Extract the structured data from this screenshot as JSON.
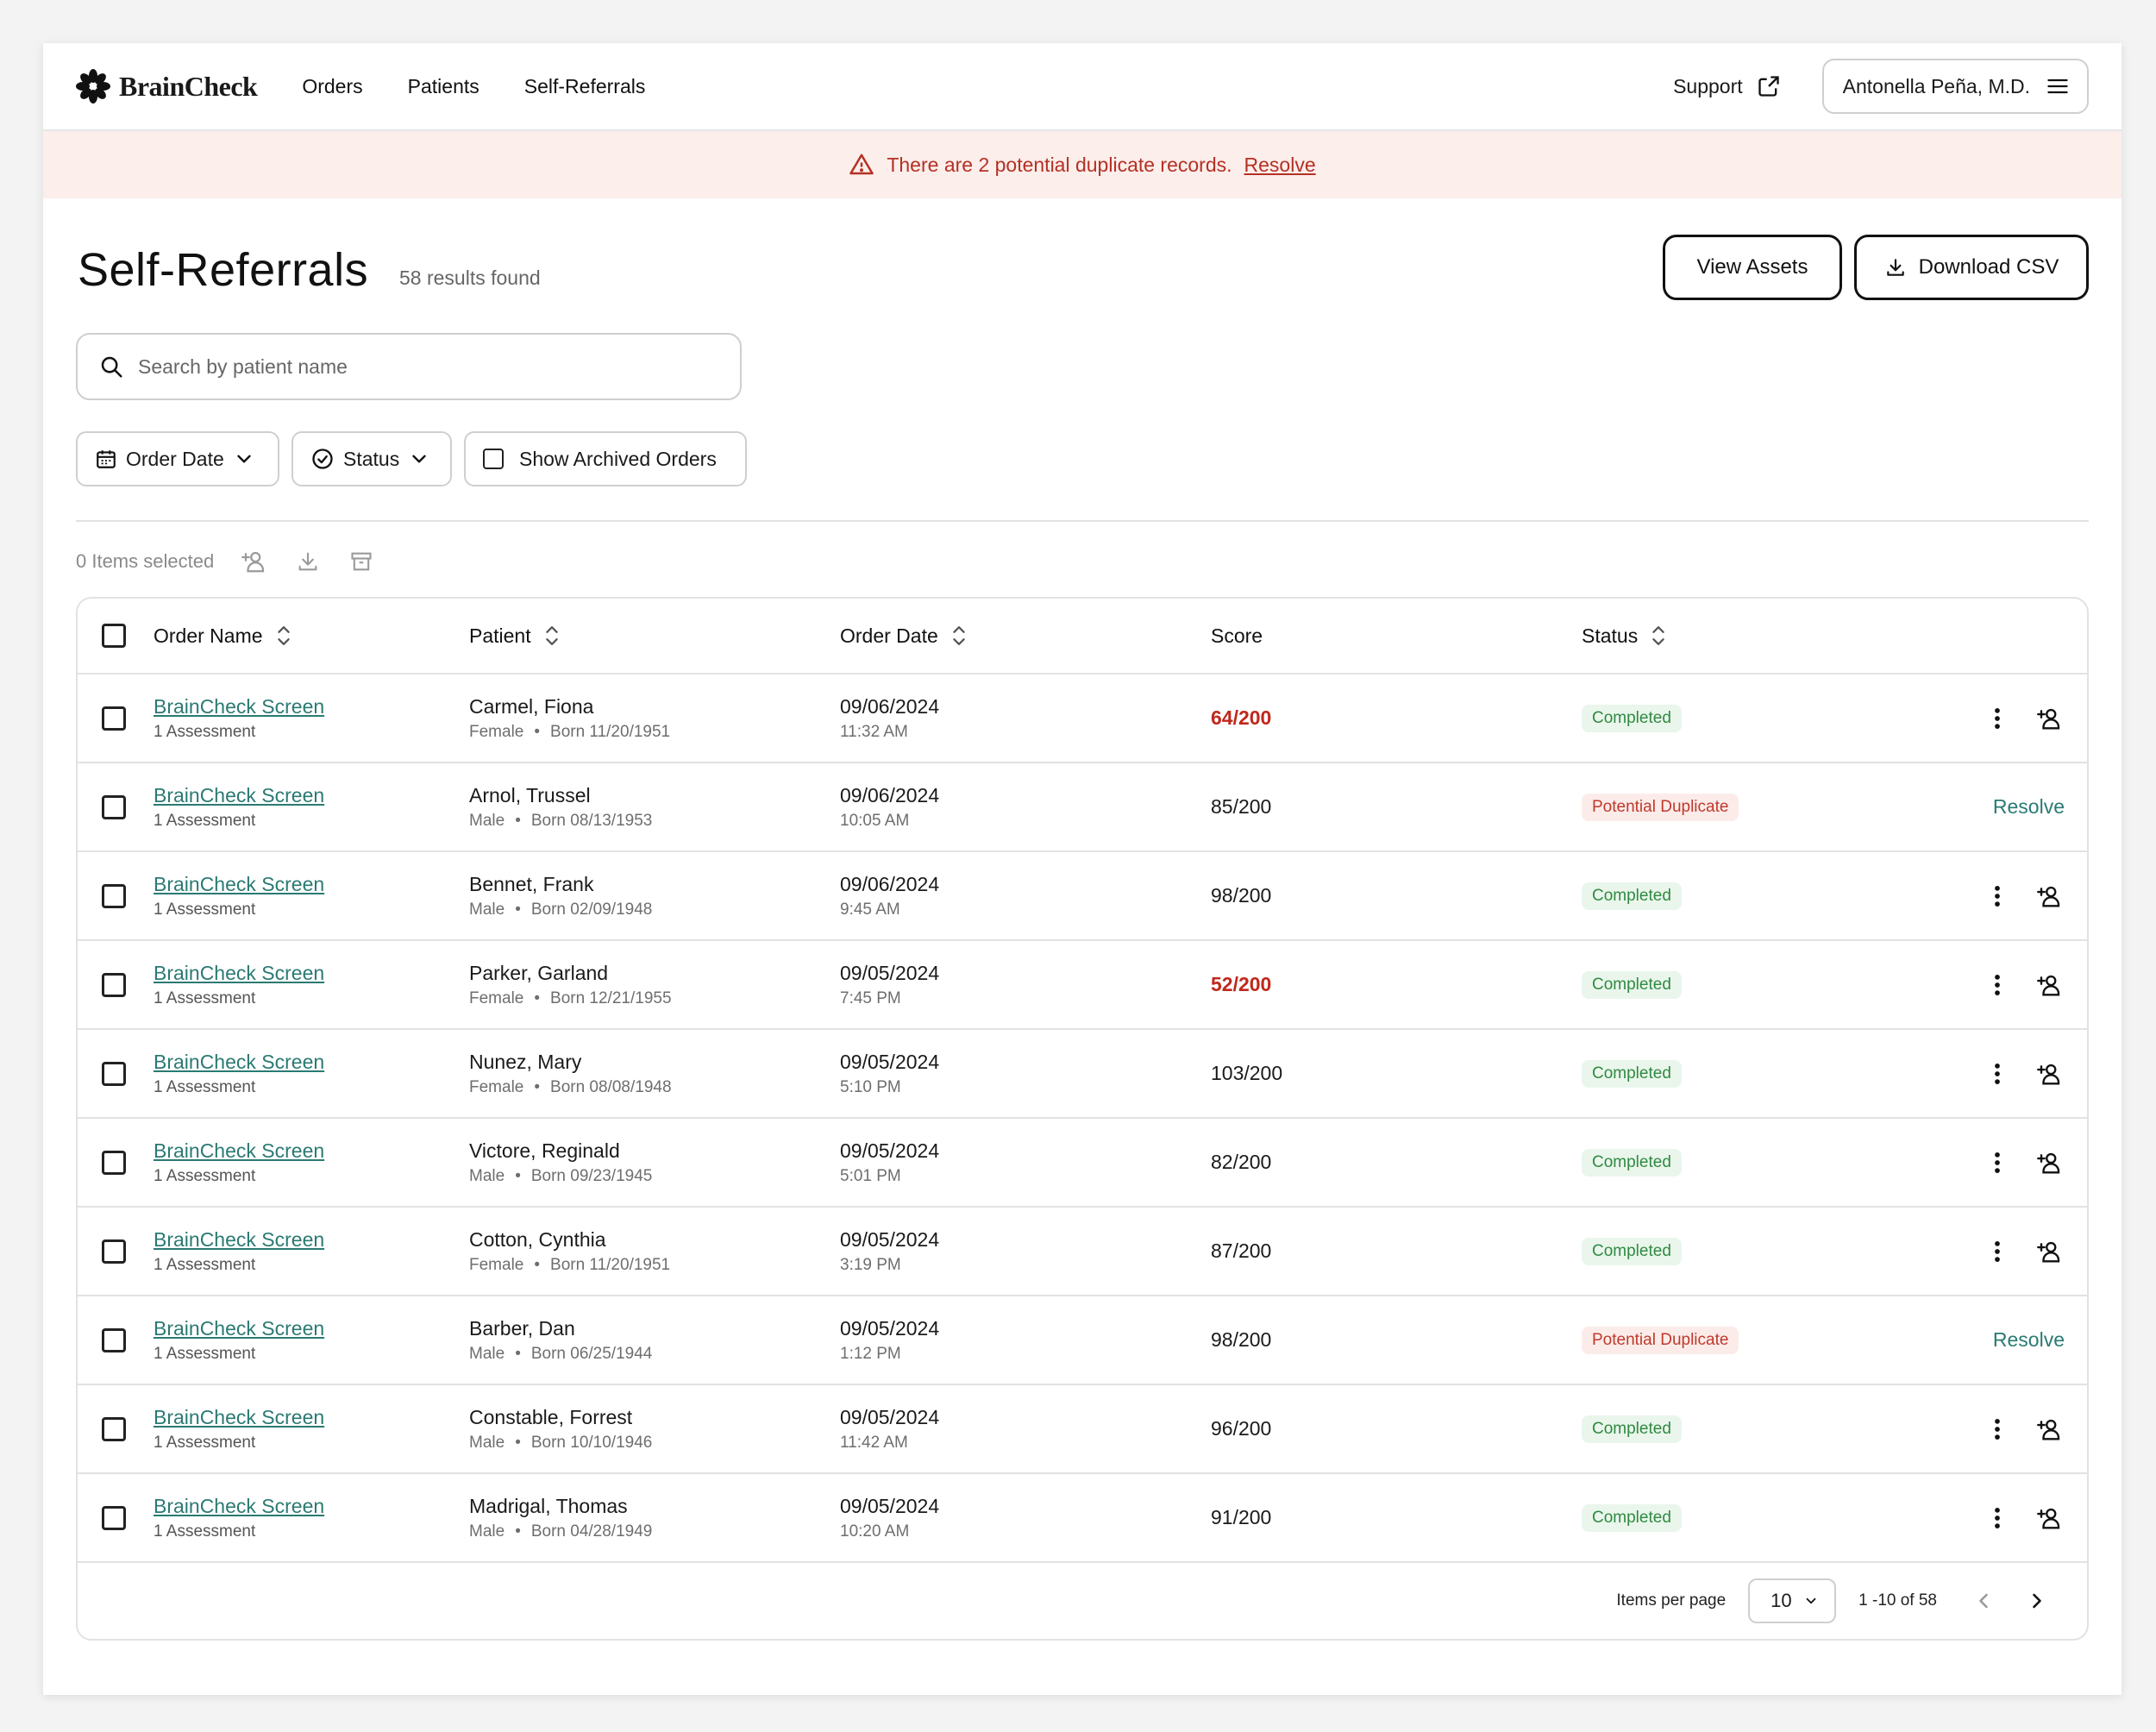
{
  "brand": {
    "name": "BrainCheck"
  },
  "nav": {
    "items": [
      {
        "label": "Orders"
      },
      {
        "label": "Patients"
      },
      {
        "label": "Self-Referrals"
      }
    ],
    "support_label": "Support",
    "user_label": "Antonella Peña, M.D."
  },
  "alert": {
    "message": "There are 2 potential duplicate records.",
    "action": "Resolve",
    "color": "#b53024"
  },
  "header": {
    "title": "Self-Referrals",
    "results": "58 results found",
    "view_assets": "View Assets",
    "download_csv": "Download CSV"
  },
  "search": {
    "placeholder": "Search by patient name",
    "value": ""
  },
  "filters": {
    "order_date": "Order Date",
    "status": "Status",
    "show_archived": "Show Archived Orders"
  },
  "bulk": {
    "selected_text": "0 Items selected"
  },
  "table": {
    "columns": {
      "order_name": "Order Name",
      "patient": "Patient",
      "order_date": "Order Date",
      "score": "Score",
      "status": "Status"
    },
    "rows": [
      {
        "order": "BrainCheck Screen",
        "assessments": "1 Assessment",
        "patient": "Carmel, Fiona",
        "sex": "Female",
        "born": "Born 11/20/1951",
        "date": "09/06/2024",
        "time": "11:32 AM",
        "score": "64/200",
        "low": true,
        "status": "Completed",
        "dup": false
      },
      {
        "order": "BrainCheck Screen",
        "assessments": "1 Assessment",
        "patient": "Arnol, Trussel",
        "sex": "Male",
        "born": "Born 08/13/1953",
        "date": "09/06/2024",
        "time": "10:05 AM",
        "score": "85/200",
        "low": false,
        "status": "Potential Duplicate",
        "dup": true,
        "resolve": "Resolve"
      },
      {
        "order": "BrainCheck Screen",
        "assessments": "1 Assessment",
        "patient": "Bennet, Frank",
        "sex": "Male",
        "born": "Born 02/09/1948",
        "date": "09/06/2024",
        "time": "9:45 AM",
        "score": "98/200",
        "low": false,
        "status": "Completed",
        "dup": false
      },
      {
        "order": "BrainCheck Screen",
        "assessments": "1 Assessment",
        "patient": "Parker, Garland",
        "sex": "Female",
        "born": "Born 12/21/1955",
        "date": "09/05/2024",
        "time": "7:45 PM",
        "score": "52/200",
        "low": true,
        "status": "Completed",
        "dup": false
      },
      {
        "order": "BrainCheck Screen",
        "assessments": "1 Assessment",
        "patient": "Nunez, Mary",
        "sex": "Female",
        "born": "Born 08/08/1948",
        "date": "09/05/2024",
        "time": "5:10 PM",
        "score": "103/200",
        "low": false,
        "status": "Completed",
        "dup": false
      },
      {
        "order": "BrainCheck Screen",
        "assessments": "1 Assessment",
        "patient": "Victore, Reginald",
        "sex": "Male",
        "born": "Born 09/23/1945",
        "date": "09/05/2024",
        "time": "5:01 PM",
        "score": "82/200",
        "low": false,
        "status": "Completed",
        "dup": false
      },
      {
        "order": "BrainCheck Screen",
        "assessments": "1 Assessment",
        "patient": "Cotton, Cynthia",
        "sex": "Female",
        "born": "Born 11/20/1951",
        "date": "09/05/2024",
        "time": "3:19 PM",
        "score": "87/200",
        "low": false,
        "status": "Completed",
        "dup": false
      },
      {
        "order": "BrainCheck Screen",
        "assessments": "1 Assessment",
        "patient": "Barber, Dan",
        "sex": "Male",
        "born": "Born 06/25/1944",
        "date": "09/05/2024",
        "time": "1:12 PM",
        "score": "98/200",
        "low": false,
        "status": "Potential Duplicate",
        "dup": true,
        "resolve": "Resolve"
      },
      {
        "order": "BrainCheck Screen",
        "assessments": "1 Assessment",
        "patient": "Constable, Forrest",
        "sex": "Male",
        "born": "Born 10/10/1946",
        "date": "09/05/2024",
        "time": "11:42 AM",
        "score": "96/200",
        "low": false,
        "status": "Completed",
        "dup": false
      },
      {
        "order": "BrainCheck Screen",
        "assessments": "1 Assessment",
        "patient": "Madrigal, Thomas",
        "sex": "Male",
        "born": "Born 04/28/1949",
        "date": "09/05/2024",
        "time": "10:20 AM",
        "score": "91/200",
        "low": false,
        "status": "Completed",
        "dup": false
      }
    ]
  },
  "pagination": {
    "items_per_page_label": "Items per page",
    "per_page": "10",
    "range": "1 -10 of 58"
  },
  "colors": {
    "link": "#2a7a73",
    "low_score": "#c0281c",
    "completed_bg": "#eaf6ec",
    "completed_text": "#2f8a41",
    "duplicate_bg": "#fbecea",
    "duplicate_text": "#c0392b"
  }
}
